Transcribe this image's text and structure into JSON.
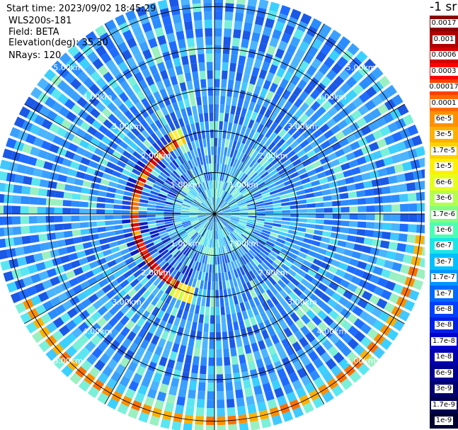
{
  "header": {
    "start_time": "Start time: 2023/09/02 18:45:29",
    "instrument": "WLS200s-181",
    "field": "Field: BETA",
    "elevation": "Elevation(deg): 35.30",
    "nrays": "NRays: 120"
  },
  "colorbar": {
    "unit": "-1 sr",
    "labels": [
      "0.0017",
      "0.001",
      "0.0006",
      "0.0003",
      "0.00017",
      "0.0001",
      "6e-5",
      "3e-5",
      "1.7e-5",
      "1e-5",
      "6e-6",
      "3e-6",
      "1.7e-6",
      "1e-6",
      "6e-7",
      "3e-7",
      "1.7e-7",
      "1e-7",
      "6e-8",
      "3e-8",
      "1.7e-8",
      "1e-8",
      "6e-9",
      "3e-9",
      "1.7e-9",
      "1e-9"
    ],
    "colors": [
      "#8b0000",
      "#b00000",
      "#d40000",
      "#ff0000",
      "#ff4000",
      "#ff6a00",
      "#ff9000",
      "#ffb000",
      "#ffd200",
      "#fff000",
      "#e6ff1a",
      "#b4ff4a",
      "#80ff80",
      "#4affb4",
      "#1ae6e6",
      "#00c0ff",
      "#0096ff",
      "#006aff",
      "#0040ff",
      "#0020e6",
      "#0000cd",
      "#0000b0",
      "#000090",
      "#000070",
      "#000050",
      "#000030"
    ]
  },
  "polar_chart": {
    "type": "heatmap",
    "projection": "polar",
    "nrays": 120,
    "ring_labels": [
      "1.00km",
      "2.00km",
      "3.00km",
      "4.00km",
      "5.00km"
    ],
    "max_range_km": 5.3,
    "features": [
      {
        "range_km": 5.0,
        "azimuth_from_deg": 95,
        "azimuth_to_deg": 245,
        "level": "3e-5"
      },
      {
        "range_km": 2.1,
        "azimuth_from_deg": 195,
        "azimuth_to_deg": 340,
        "level": "0.0003"
      }
    ]
  }
}
